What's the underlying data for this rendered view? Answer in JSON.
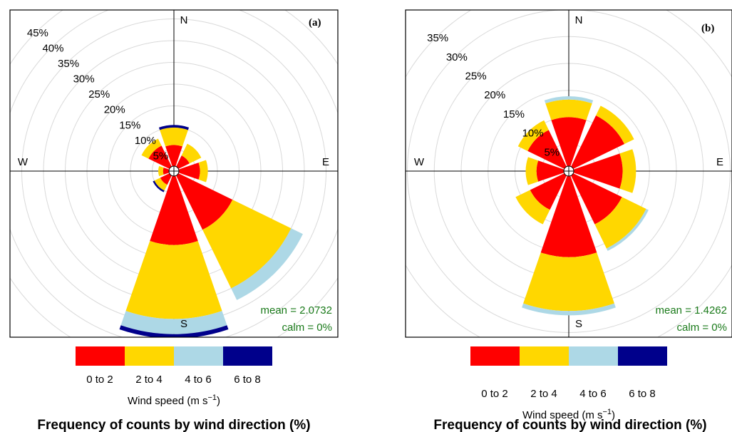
{
  "colors": {
    "0 to 2": "#ff0000",
    "2 to 4": "#ffd700",
    "4 to 6": "#add8e6",
    "6 to 8": "#00008b",
    "stats": "#1a7a1a"
  },
  "legend": {
    "labels": [
      "0 to 2",
      "2 to 4",
      "4 to 6",
      "6 to 8"
    ],
    "title": "Wind speed (m s",
    "title_sup": "−1",
    "title_end": ")"
  },
  "footer": "Frequency of counts by wind direction (%)",
  "chart_data": [
    {
      "type": "wind-rose",
      "panel_label": "(a)",
      "directions": [
        "N",
        "NE",
        "E",
        "SE",
        "S",
        "SW",
        "W",
        "NW"
      ],
      "compass": {
        "N": "N",
        "E": "E",
        "S": "S",
        "W": "W"
      },
      "speed_bins": [
        "0 to 2",
        "2 to 4",
        "4 to 6",
        "6 to 8"
      ],
      "grid_percent": [
        5,
        10,
        15,
        20,
        25,
        30,
        35,
        40,
        45
      ],
      "tick_labels": [
        "5%",
        "10%",
        "15%",
        "20%",
        "25%",
        "30%",
        "35%",
        "40%",
        "45%"
      ],
      "rmax": 45,
      "frequencies_cumulative_percent": {
        "N": [
          6.0,
          10.0,
          10.0,
          10.6
        ],
        "NE": [
          4.0,
          7.0,
          7.0,
          7.0
        ],
        "E": [
          6.0,
          7.8,
          7.8,
          7.8
        ],
        "SE": [
          15.0,
          30.0,
          33.0,
          33.0
        ],
        "S": [
          17.0,
          34.0,
          37.5,
          38.5
        ],
        "SW": [
          3.5,
          5.0,
          5.0,
          5.4
        ],
        "W": [
          2.5,
          3.6,
          3.6,
          3.6
        ],
        "NW": [
          6.5,
          8.3,
          8.3,
          8.3
        ]
      },
      "stats": {
        "mean": "mean = 2.0732",
        "calm": "calm = 0%"
      }
    },
    {
      "type": "wind-rose",
      "panel_label": "(b)",
      "directions": [
        "N",
        "NE",
        "E",
        "SE",
        "S",
        "SW",
        "W",
        "NW"
      ],
      "compass": {
        "N": "N",
        "E": "E",
        "S": "S",
        "W": "W"
      },
      "speed_bins": [
        "0 to 2",
        "2 to 4",
        "4 to 6",
        "6 to 8"
      ],
      "grid_percent": [
        5,
        10,
        15,
        20,
        25,
        30,
        35
      ],
      "tick_labels": [
        "5%",
        "10%",
        "15%",
        "20%",
        "25%",
        "30%",
        "35%"
      ],
      "rmax": 35,
      "frequencies_cumulative_percent": {
        "N": [
          10.0,
          13.3,
          13.9,
          13.9
        ],
        "NE": [
          11.5,
          13.5,
          13.5,
          13.5
        ],
        "E": [
          10.0,
          12.5,
          12.5,
          12.5
        ],
        "SE": [
          11.0,
          16.0,
          16.5,
          16.5
        ],
        "S": [
          16.0,
          26.0,
          26.8,
          26.8
        ],
        "SW": [
          8.0,
          11.0,
          11.0,
          11.0
        ],
        "W": [
          6.0,
          8.0,
          8.0,
          8.0
        ],
        "NW": [
          8.5,
          10.5,
          10.5,
          10.5
        ]
      },
      "stats": {
        "mean": "mean = 1.4262",
        "calm": "calm = 0%"
      }
    }
  ]
}
